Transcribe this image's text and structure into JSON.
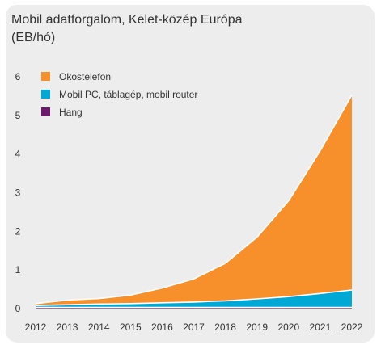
{
  "title_line1": "Mobil adatforgalom, Kelet-közép Európa",
  "title_line2": "(EB/hó)",
  "colors": {
    "background": "#ededed",
    "okostelefon": "#f7902a",
    "mobil_pc": "#00a8d6",
    "hang": "#6d1a6d",
    "separator": "#ffffff"
  },
  "chart_data": {
    "type": "area",
    "stacked": true,
    "x": [
      "2012",
      "2013",
      "2014",
      "2015",
      "2016",
      "2017",
      "2018",
      "2019",
      "2020",
      "2021",
      "2022"
    ],
    "yticks": [
      "0",
      "1",
      "2",
      "3",
      "4",
      "5",
      "6"
    ],
    "ylim": [
      0,
      6
    ],
    "legend_position": "top-left",
    "series": [
      {
        "name": "Hang",
        "color": "#6d1a6d",
        "values": [
          0.03,
          0.03,
          0.03,
          0.03,
          0.03,
          0.03,
          0.03,
          0.03,
          0.03,
          0.03,
          0.03
        ]
      },
      {
        "name": "Mobil PC, táblagép, mobil router",
        "color": "#00a8d6",
        "values": [
          0.05,
          0.07,
          0.09,
          0.1,
          0.12,
          0.14,
          0.17,
          0.22,
          0.28,
          0.36,
          0.45
        ]
      },
      {
        "name": "Okostelefon",
        "color": "#f7902a",
        "values": [
          0.05,
          0.12,
          0.14,
          0.22,
          0.38,
          0.6,
          0.97,
          1.6,
          2.48,
          3.7,
          5.05
        ]
      }
    ],
    "legend": [
      {
        "name": "Okostelefon",
        "color": "#f7902a"
      },
      {
        "name": "Mobil PC, táblagép, mobil router",
        "color": "#00a8d6"
      },
      {
        "name": "Hang",
        "color": "#6d1a6d"
      }
    ]
  }
}
